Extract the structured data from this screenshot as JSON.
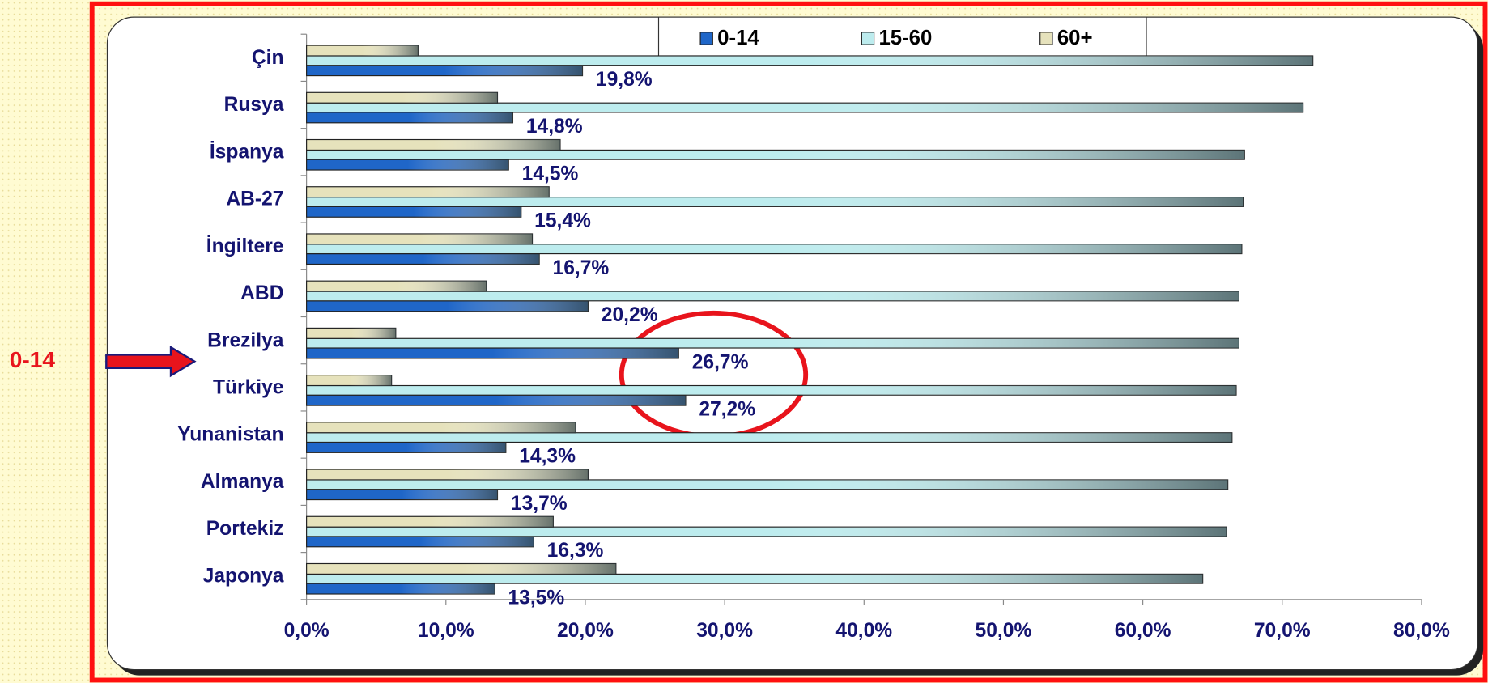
{
  "chart_data": {
    "type": "hbar",
    "annotation": "0-14",
    "categories": [
      "Çin",
      "Rusya",
      "İspanya",
      "AB-27",
      "İngiltere",
      "ABD",
      "Brezilya",
      "Türkiye",
      "Yunanistan",
      "Almanya",
      "Portekiz",
      "Japonya"
    ],
    "series": [
      {
        "name": "0-14",
        "color": "#1f66c8",
        "values": [
          19.8,
          14.8,
          14.5,
          15.4,
          16.7,
          20.2,
          26.7,
          27.2,
          14.3,
          13.7,
          16.3,
          13.5
        ],
        "value_labels": [
          "19,8%",
          "14,8%",
          "14,5%",
          "15,4%",
          "16,7%",
          "20,2%",
          "26,7%",
          "27,2%",
          "14,3%",
          "13,7%",
          "16,3%",
          "13,5%"
        ]
      },
      {
        "name": "15-60",
        "color": "#bdecee",
        "values": [
          72.2,
          71.5,
          67.3,
          67.2,
          67.1,
          66.9,
          66.9,
          66.7,
          66.4,
          66.1,
          66.0,
          64.3
        ]
      },
      {
        "name": "60+",
        "color": "#e6e2bc",
        "values": [
          8.0,
          13.7,
          18.2,
          17.4,
          16.2,
          12.9,
          6.4,
          6.1,
          19.3,
          20.2,
          17.7,
          22.2
        ]
      }
    ],
    "xlim": [
      0,
      80
    ],
    "xticks": [
      {
        "value": 0,
        "label": "0,0%"
      },
      {
        "value": 10,
        "label": "10,0%"
      },
      {
        "value": 20,
        "label": "20,0%"
      },
      {
        "value": 30,
        "label": "30,0%"
      },
      {
        "value": 40,
        "label": "40,0%"
      },
      {
        "value": 50,
        "label": "50,0%"
      },
      {
        "value": 60,
        "label": "60,0%"
      },
      {
        "value": 70,
        "label": "70,0%"
      },
      {
        "value": 80,
        "label": "80,0%"
      }
    ]
  }
}
